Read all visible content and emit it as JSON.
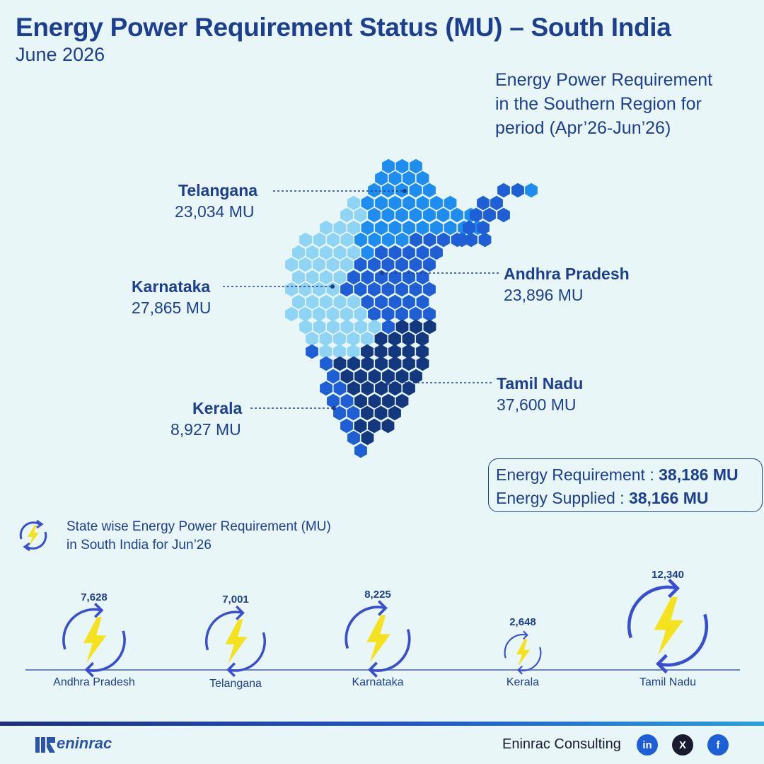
{
  "header": {
    "title": "Energy Power Requirement Status (MU) – South India",
    "subtitle": "June 2026"
  },
  "region_note": {
    "line1": "Energy Power Requirement",
    "line2": "in the Southern Region for",
    "line3": "period (Apr’26-Jun’26)"
  },
  "map_states": {
    "telangana": {
      "name": "Telangana",
      "value": "23,034 MU",
      "color": "#1f8cf0"
    },
    "karnataka": {
      "name": "Karnataka",
      "value": "27,865 MU",
      "color": "#8fd3f5"
    },
    "andhra": {
      "name": "Andhra Pradesh",
      "value": "23,896 MU",
      "color": "#1f5fd6"
    },
    "tamil": {
      "name": "Tamil Nadu",
      "value": "37,600 MU",
      "color": "#13387f"
    },
    "kerala": {
      "name": "Kerala",
      "value": "8,927 MU",
      "color": "#1f5fd6"
    }
  },
  "summary": {
    "req_label": "Energy Requirement : ",
    "req_value": "38,186 MU",
    "sup_label": "Energy Supplied : ",
    "sup_value": "38,166 MU"
  },
  "section": {
    "line1": "State wise Energy Power Requirement (MU)",
    "line2": "in South India for Jun’26",
    "icon": "lightning-cycle-icon"
  },
  "chart_data": {
    "type": "bubble",
    "title": "State wise Energy Power Requirement (MU) in South India for Jun’26",
    "categories": [
      "Andhra Pradesh",
      "Telangana",
      "Karnataka",
      "Kerala",
      "Tamil Nadu"
    ],
    "values": [
      7628,
      7001,
      8225,
      2648,
      12340
    ],
    "value_labels": [
      "7,628",
      "7,001",
      "8,225",
      "2,648",
      "12,340"
    ]
  },
  "colors": {
    "accent": "#1d3f8f",
    "ring": "#3a4fd0",
    "bolt": "#f5e21e",
    "background": "#e8f6f7"
  },
  "footer": {
    "brand": "Eninrac Consulting",
    "logo_text": "eninrac",
    "logo_mark": "RAC",
    "social": [
      "in",
      "X",
      "f"
    ]
  }
}
